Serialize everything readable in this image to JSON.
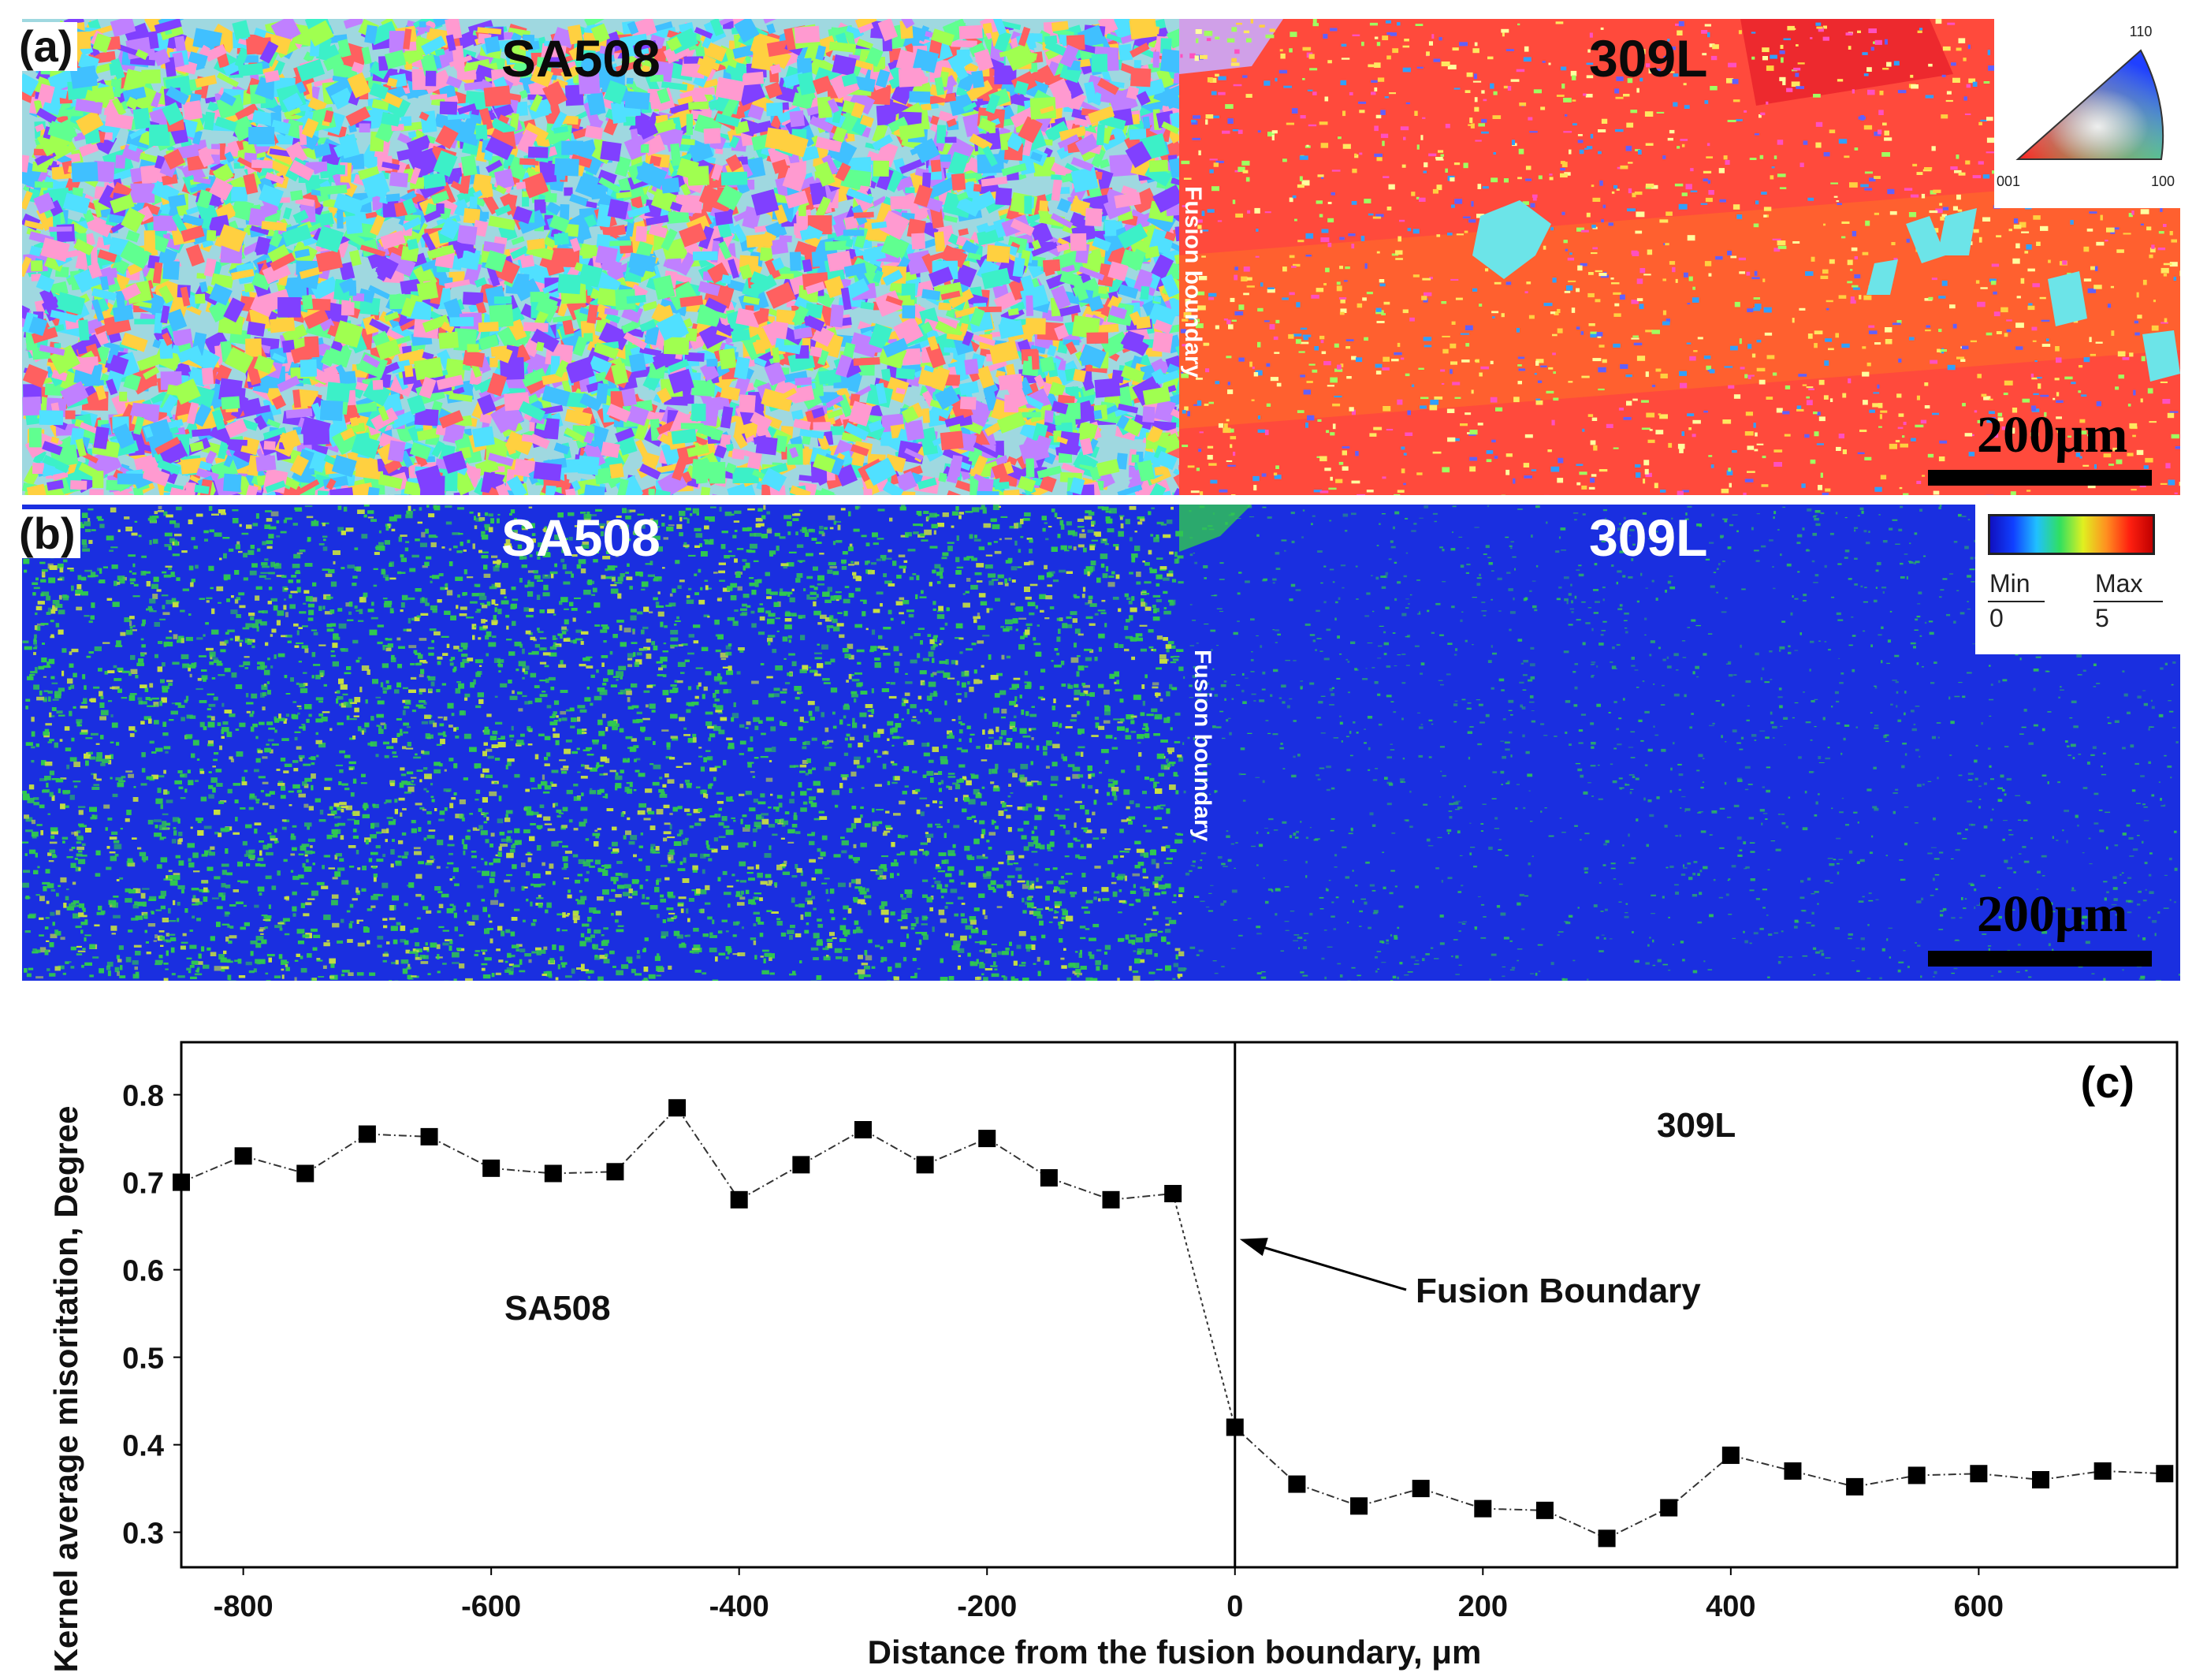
{
  "panel_a": {
    "letter": "(a)",
    "left_material": "SA508",
    "right_material": "309L",
    "boundary_label": "Fusion boundary",
    "scale_bar": "200μm",
    "ipf_key": {
      "top": "110",
      "bottom_left": "001",
      "bottom_right": "100"
    },
    "colors": {
      "sa508_palette": [
        "#3cf0c8",
        "#a0ff50",
        "#ff9ad0",
        "#8040ff",
        "#40c0ff",
        "#ffd040",
        "#ff6060",
        "#60ff90",
        "#c080ff",
        "#50e0ff"
      ],
      "weld_base": "#ff4a3c",
      "weld_alt": "#ff6a2a",
      "inclusion": "#6ce4e8"
    }
  },
  "panel_b": {
    "letter": "(b)",
    "left_material": "SA508",
    "right_material": "309L",
    "boundary_label": "Fusion boundary",
    "scale_bar": "200μm",
    "legend": {
      "min_label": "Min",
      "max_label": "Max",
      "min_value": "0",
      "max_value": "5"
    },
    "colors": {
      "base": "#1a2fe0",
      "green": "#30c850",
      "yellow": "#c8e040"
    }
  },
  "chart_data": {
    "type": "scatter",
    "panel_label": "(c)",
    "xlabel": "Distance from the fusion boundary, μm",
    "ylabel": "Kernel average misoritation, Degree",
    "xlim": [
      -850,
      760
    ],
    "ylim": [
      0.26,
      0.86
    ],
    "xticks": [
      -800,
      -600,
      -400,
      -200,
      0,
      200,
      400,
      600
    ],
    "yticks": [
      0.3,
      0.4,
      0.5,
      0.6,
      0.7,
      0.8
    ],
    "ytick_labels": [
      "0.3",
      "0.4",
      "0.5",
      "0.6",
      "0.7",
      "0.8"
    ],
    "boundary_x": 0,
    "region_labels": {
      "left": "SA508",
      "right": "309L"
    },
    "annotation": {
      "text": "Fusion Boundary",
      "arrow_to": [
        0,
        0.635
      ]
    },
    "series": [
      {
        "x": [
          -850,
          -800,
          -750,
          -700,
          -650,
          -600,
          -550,
          -500,
          -450,
          -400,
          -350,
          -300,
          -250,
          -200,
          -150,
          -100,
          -50,
          0,
          50,
          100,
          150,
          200,
          250,
          300,
          350,
          400,
          450,
          500,
          550,
          600,
          650,
          700,
          750
        ],
        "y": [
          0.7,
          0.73,
          0.71,
          0.755,
          0.752,
          0.716,
          0.71,
          0.712,
          0.785,
          0.68,
          0.72,
          0.76,
          0.72,
          0.75,
          0.705,
          0.68,
          0.687,
          0.42,
          0.355,
          0.33,
          0.35,
          0.327,
          0.325,
          0.293,
          0.328,
          0.388,
          0.37,
          0.352,
          0.365,
          0.367,
          0.36,
          0.37,
          0.367
        ]
      }
    ],
    "marker": "square",
    "marker_color": "#000000"
  }
}
